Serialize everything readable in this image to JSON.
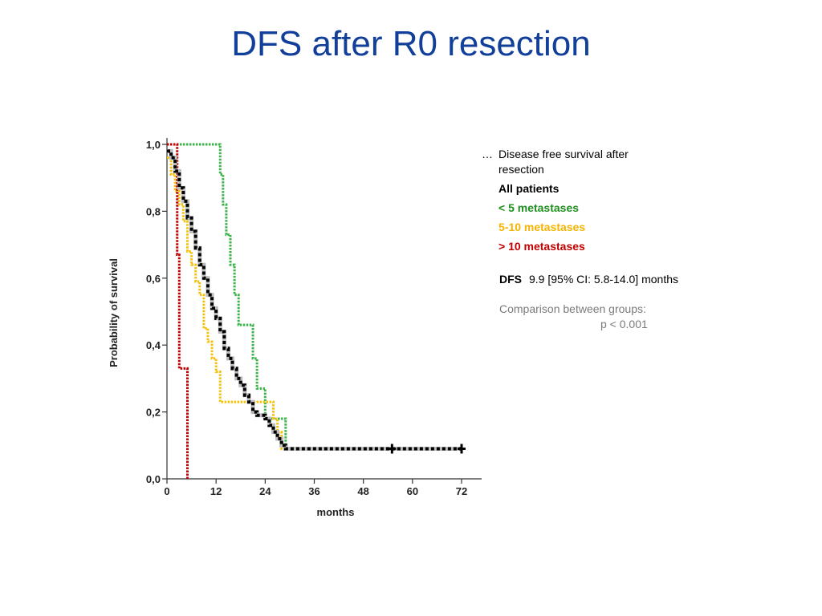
{
  "slide": {
    "title": "DFS after R0 resection"
  },
  "legend": {
    "bullet": "…",
    "description": "Disease free survival after resection",
    "entries": [
      {
        "label": "All patients",
        "color": "#000000"
      },
      {
        "label": "< 5 metastases",
        "color": "#1f8f1f"
      },
      {
        "label": "5-10 metastases",
        "color": "#f4b400"
      },
      {
        "label": "> 10 metastases",
        "color": "#c00000"
      }
    ]
  },
  "dfs": {
    "label": "DFS",
    "value": "9.9 [95% CI: 5.8-14.0] months"
  },
  "comparison": {
    "text": "Comparison between groups:",
    "pvalue": "p < 0.001"
  },
  "chart_data": {
    "type": "line",
    "step": true,
    "xlabel": "months",
    "ylabel": "Probability of survival",
    "xlim": [
      0,
      76
    ],
    "ylim": [
      0,
      1
    ],
    "xticks": [
      0,
      12,
      24,
      36,
      48,
      60,
      72
    ],
    "xtick_labels": [
      "0",
      "12",
      "24",
      "36",
      "48",
      "60",
      "72"
    ],
    "yticks": [
      0,
      0.2,
      0.4,
      0.6,
      0.8,
      1.0
    ],
    "ytick_labels": [
      "0,0",
      "0,2",
      "0,4",
      "0,6",
      "0,8",
      "1,0"
    ],
    "series": [
      {
        "name": "< 5 metastases",
        "color": "#3cb44b",
        "x": [
          0,
          10,
          13,
          13.7,
          14.5,
          15.5,
          16.5,
          17.5,
          21,
          22,
          24,
          28,
          29,
          72
        ],
        "y": [
          1.0,
          1.0,
          0.91,
          0.82,
          0.73,
          0.64,
          0.55,
          0.46,
          0.36,
          0.27,
          0.18,
          0.18,
          0.09,
          0.09
        ]
      },
      {
        "name": "5-10 metastases",
        "color": "#f4c20d",
        "x": [
          0,
          1,
          2,
          3,
          4,
          5,
          6,
          7,
          8,
          9,
          10,
          11,
          12,
          13,
          25,
          26,
          27,
          28,
          72
        ],
        "y": [
          0.96,
          0.91,
          0.86,
          0.82,
          0.77,
          0.68,
          0.64,
          0.59,
          0.55,
          0.45,
          0.41,
          0.36,
          0.32,
          0.23,
          0.23,
          0.18,
          0.14,
          0.09,
          0.09
        ]
      },
      {
        "name": "> 10 metastases",
        "color": "#c00000",
        "x": [
          0,
          2,
          2.5,
          3,
          4.5,
          5
        ],
        "y": [
          1.0,
          1.0,
          0.67,
          0.33,
          0.33,
          0.0
        ]
      },
      {
        "name": "All patients",
        "color": "#000000",
        "x": [
          0,
          1,
          2,
          3,
          4,
          5,
          6,
          7,
          8,
          9,
          10,
          11,
          12,
          13,
          14,
          15,
          16,
          17,
          18,
          19,
          20,
          21,
          22,
          24,
          25,
          26,
          27,
          28,
          29,
          72
        ],
        "y": [
          0.98,
          0.96,
          0.92,
          0.87,
          0.83,
          0.78,
          0.74,
          0.69,
          0.64,
          0.6,
          0.55,
          0.51,
          0.48,
          0.44,
          0.39,
          0.36,
          0.33,
          0.3,
          0.28,
          0.25,
          0.23,
          0.2,
          0.19,
          0.18,
          0.16,
          0.14,
          0.12,
          0.1,
          0.09,
          0.09
        ]
      }
    ],
    "censor_marks": [
      {
        "x": 55,
        "y": 0.09
      },
      {
        "x": 72,
        "y": 0.09
      }
    ]
  }
}
